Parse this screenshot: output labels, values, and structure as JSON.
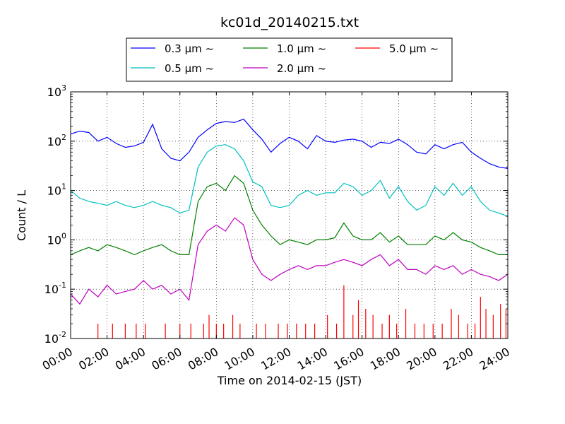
{
  "chart_data": {
    "type": "line",
    "title": "kc01d_20140215.txt",
    "xlabel": "Time on 2014-02-15 (JST)",
    "ylabel": "Count / L",
    "yscale": "log",
    "ylim": [
      0.01,
      1000
    ],
    "xlim": [
      "2014-02-15 00:00",
      "2014-02-16 00:00"
    ],
    "x_ticks": [
      "00:00",
      "02:00",
      "04:00",
      "06:00",
      "08:00",
      "10:00",
      "12:00",
      "14:00",
      "16:00",
      "18:00",
      "20:00",
      "22:00",
      "24:00"
    ],
    "y_ticks": [
      {
        "base": "10",
        "exp": "-2",
        "value": 0.01
      },
      {
        "base": "10",
        "exp": "-1",
        "value": 0.1
      },
      {
        "base": "10",
        "exp": "0",
        "value": 1
      },
      {
        "base": "10",
        "exp": "1",
        "value": 10
      },
      {
        "base": "10",
        "exp": "2",
        "value": 100
      },
      {
        "base": "10",
        "exp": "3",
        "value": 1000
      }
    ],
    "grid": true,
    "legend_position": "top-center",
    "series": [
      {
        "name": "0.3 μm ~",
        "color": "#0000ff",
        "x_hours": [
          0,
          0.5,
          1,
          1.5,
          2,
          2.5,
          3,
          3.5,
          4,
          4.5,
          5,
          5.5,
          6,
          6.5,
          7,
          7.5,
          8,
          8.5,
          9,
          9.5,
          10,
          10.5,
          11,
          11.5,
          12,
          12.5,
          13,
          13.5,
          14,
          14.5,
          15,
          15.5,
          16,
          16.5,
          17,
          17.5,
          18,
          18.5,
          19,
          19.5,
          20,
          20.5,
          21,
          21.5,
          22,
          22.5,
          23,
          23.5,
          24
        ],
        "values": [
          140,
          160,
          150,
          100,
          120,
          90,
          75,
          80,
          95,
          220,
          70,
          45,
          40,
          60,
          120,
          170,
          230,
          250,
          240,
          280,
          170,
          110,
          60,
          90,
          120,
          100,
          70,
          130,
          100,
          95,
          105,
          110,
          100,
          75,
          95,
          90,
          110,
          85,
          60,
          55,
          85,
          70,
          85,
          95,
          60,
          45,
          35,
          30,
          28
        ]
      },
      {
        "name": "0.5 μm ~",
        "color": "#00bfbf",
        "x_hours": [
          0,
          0.5,
          1,
          1.5,
          2,
          2.5,
          3,
          3.5,
          4,
          4.5,
          5,
          5.5,
          6,
          6.5,
          7,
          7.5,
          8,
          8.5,
          9,
          9.5,
          10,
          10.5,
          11,
          11.5,
          12,
          12.5,
          13,
          13.5,
          14,
          14.5,
          15,
          15.5,
          16,
          16.5,
          17,
          17.5,
          18,
          18.5,
          19,
          19.5,
          20,
          20.5,
          21,
          21.5,
          22,
          22.5,
          23,
          23.5,
          24
        ],
        "values": [
          10,
          7,
          6,
          5.5,
          5,
          6,
          5,
          4.5,
          5,
          6,
          5,
          4.5,
          3.5,
          4,
          30,
          60,
          80,
          85,
          70,
          40,
          15,
          12,
          5,
          4.5,
          5,
          8,
          10,
          8,
          9,
          9,
          14,
          12,
          8,
          10,
          16,
          7,
          12,
          6,
          4,
          5,
          12,
          8,
          14,
          8,
          12,
          6,
          4,
          3.5,
          3
        ]
      },
      {
        "name": "1.0 μm ~",
        "color": "#008000",
        "x_hours": [
          0,
          0.5,
          1,
          1.5,
          2,
          2.5,
          3,
          3.5,
          4,
          4.5,
          5,
          5.5,
          6,
          6.5,
          7,
          7.5,
          8,
          8.5,
          9,
          9.5,
          10,
          10.5,
          11,
          11.5,
          12,
          12.5,
          13,
          13.5,
          14,
          14.5,
          15,
          15.5,
          16,
          16.5,
          17,
          17.5,
          18,
          18.5,
          19,
          19.5,
          20,
          20.5,
          21,
          21.5,
          22,
          22.5,
          23,
          23.5,
          24
        ],
        "values": [
          0.5,
          0.6,
          0.7,
          0.6,
          0.8,
          0.7,
          0.6,
          0.5,
          0.6,
          0.7,
          0.8,
          0.6,
          0.5,
          0.5,
          6,
          12,
          14,
          10,
          20,
          14,
          4,
          2,
          1.2,
          0.8,
          1,
          0.9,
          0.8,
          1,
          1,
          1.1,
          2.2,
          1.2,
          1,
          1,
          1.4,
          0.9,
          1.2,
          0.8,
          0.8,
          0.8,
          1.2,
          1,
          1.4,
          1,
          0.9,
          0.7,
          0.6,
          0.5,
          0.5
        ]
      },
      {
        "name": "2.0 μm ~",
        "color": "#bf00bf",
        "x_hours": [
          0,
          0.5,
          1,
          1.5,
          2,
          2.5,
          3,
          3.5,
          4,
          4.5,
          5,
          5.5,
          6,
          6.5,
          7,
          7.5,
          8,
          8.5,
          9,
          9.5,
          10,
          10.5,
          11,
          11.5,
          12,
          12.5,
          13,
          13.5,
          14,
          14.5,
          15,
          15.5,
          16,
          16.5,
          17,
          17.5,
          18,
          18.5,
          19,
          19.5,
          20,
          20.5,
          21,
          21.5,
          22,
          22.5,
          23,
          23.5,
          24
        ],
        "values": [
          0.08,
          0.05,
          0.1,
          0.07,
          0.12,
          0.08,
          0.09,
          0.1,
          0.15,
          0.1,
          0.12,
          0.08,
          0.1,
          0.06,
          0.8,
          1.5,
          2,
          1.5,
          2.8,
          2,
          0.4,
          0.2,
          0.15,
          0.2,
          0.25,
          0.3,
          0.25,
          0.3,
          0.3,
          0.35,
          0.4,
          0.35,
          0.3,
          0.4,
          0.5,
          0.3,
          0.4,
          0.25,
          0.25,
          0.2,
          0.3,
          0.25,
          0.3,
          0.2,
          0.25,
          0.2,
          0.18,
          0.15,
          0.2
        ]
      },
      {
        "name": "5.0 μm ~",
        "color": "#ff0000",
        "x_hours": [
          1.5,
          2.3,
          3.0,
          3.6,
          4.1,
          5.2,
          6.0,
          6.6,
          7.3,
          7.6,
          8.0,
          8.4,
          8.9,
          9.3,
          10.2,
          10.7,
          11.4,
          11.9,
          12.4,
          12.9,
          13.4,
          14.1,
          14.6,
          15.0,
          15.5,
          15.8,
          16.2,
          16.6,
          17.1,
          17.5,
          17.9,
          18.4,
          18.9,
          19.4,
          19.9,
          20.4,
          20.9,
          21.3,
          21.8,
          22.2,
          22.5,
          22.8,
          23.2,
          23.6,
          23.9
        ],
        "values": [
          0.02,
          0.02,
          0.02,
          0.02,
          0.02,
          0.02,
          0.02,
          0.02,
          0.02,
          0.03,
          0.02,
          0.02,
          0.03,
          0.02,
          0.02,
          0.02,
          0.02,
          0.02,
          0.02,
          0.02,
          0.02,
          0.03,
          0.02,
          0.12,
          0.03,
          0.06,
          0.04,
          0.03,
          0.02,
          0.03,
          0.02,
          0.04,
          0.02,
          0.02,
          0.02,
          0.02,
          0.04,
          0.03,
          0.02,
          0.02,
          0.07,
          0.04,
          0.03,
          0.05,
          0.04
        ]
      }
    ]
  }
}
